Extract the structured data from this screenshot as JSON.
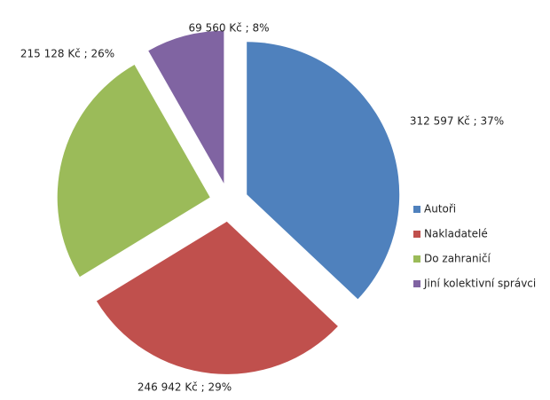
{
  "chart_data": {
    "type": "pie",
    "categories": [
      "Autoři",
      "Nakladatelé",
      "Do zahraničí",
      "Jiní kolektivní správci"
    ],
    "values": [
      312597,
      246942,
      215128,
      69560
    ],
    "value_labels": [
      "312 597 Kč ; 37%",
      "246 942 Kč ; 29%",
      "215 128 Kč ; 26%",
      "69 560 Kč ; 8%"
    ],
    "colors": [
      "#4f81bd",
      "#c0504d",
      "#9bbb59",
      "#8064a2"
    ],
    "legend": "right"
  }
}
